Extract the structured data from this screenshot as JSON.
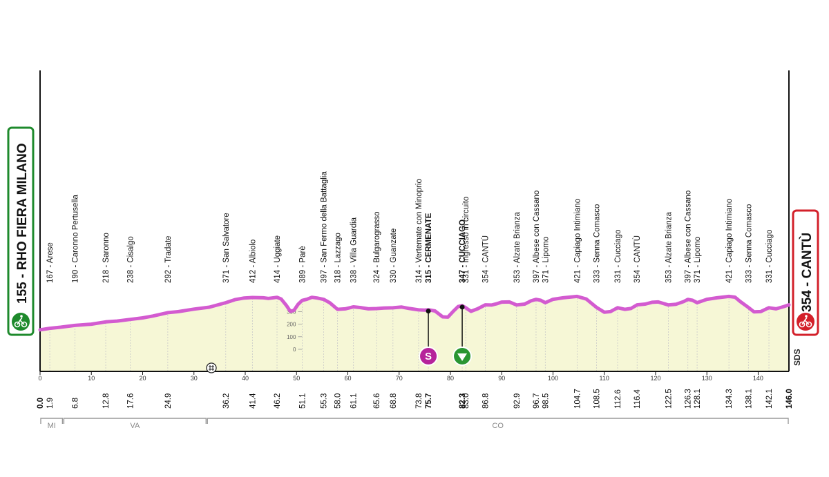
{
  "start_label": "155 - RHO FIERA MILANO",
  "finish_label": "354 - CANTÙ",
  "brand": "SDS",
  "provinces": [
    "MI",
    "VA",
    "CO"
  ],
  "colors": {
    "profile": "#d35bd0",
    "area": "#f6f7d6",
    "start_box": "#1e8a2c",
    "finish_box": "#d3202a",
    "sprint": "#b6239b",
    "kom": "#2a9632"
  },
  "icons": {
    "start": "cyclist-icon",
    "finish": "cyclist-icon",
    "sprint": "sprint-s-icon",
    "kom": "kom-triangle-icon",
    "feed": "feed-zone-icon"
  },
  "chart_data": {
    "type": "area",
    "xlabel": "",
    "ylabel": "",
    "xlim": [
      0,
      146
    ],
    "ylim": [
      0,
      450
    ],
    "x_ticks": [
      0,
      10,
      20,
      30,
      40,
      50,
      60,
      70,
      80,
      90,
      100,
      110,
      120,
      130,
      140
    ],
    "y_ticks": [
      0,
      100,
      200,
      300
    ],
    "feed_zone_km": 34,
    "profile": [
      [
        0,
        155
      ],
      [
        1.9,
        167
      ],
      [
        4,
        176
      ],
      [
        6.8,
        190
      ],
      [
        10,
        200
      ],
      [
        12.8,
        218
      ],
      [
        15,
        225
      ],
      [
        17.6,
        238
      ],
      [
        20,
        250
      ],
      [
        22,
        265
      ],
      [
        24.9,
        292
      ],
      [
        27,
        300
      ],
      [
        30,
        320
      ],
      [
        33,
        335
      ],
      [
        36.2,
        371
      ],
      [
        38,
        395
      ],
      [
        39.8,
        408
      ],
      [
        41.4,
        412
      ],
      [
        43.5,
        410
      ],
      [
        44.5,
        405
      ],
      [
        45.2,
        408
      ],
      [
        46.2,
        414
      ],
      [
        47,
        400
      ],
      [
        48,
        350
      ],
      [
        48.8,
        302
      ],
      [
        49.5,
        310
      ],
      [
        50.3,
        358
      ],
      [
        51.1,
        389
      ],
      [
        52,
        398
      ],
      [
        53,
        414
      ],
      [
        54,
        408
      ],
      [
        55.3,
        397
      ],
      [
        56.5,
        370
      ],
      [
        58,
        318
      ],
      [
        59.5,
        322
      ],
      [
        61.1,
        338
      ],
      [
        62.5,
        332
      ],
      [
        64,
        322
      ],
      [
        65.6,
        324
      ],
      [
        67,
        328
      ],
      [
        68.8,
        330
      ],
      [
        70.5,
        336
      ],
      [
        72,
        325
      ],
      [
        73.8,
        314
      ],
      [
        75,
        312
      ],
      [
        75.7,
        315
      ],
      [
        77,
        305
      ],
      [
        78.5,
        258
      ],
      [
        79.5,
        256
      ],
      [
        80.5,
        300
      ],
      [
        81.5,
        340
      ],
      [
        82.3,
        347
      ],
      [
        83,
        331
      ],
      [
        84,
        302
      ],
      [
        85.3,
        322
      ],
      [
        86.8,
        354
      ],
      [
        88,
        352
      ],
      [
        89,
        362
      ],
      [
        90,
        376
      ],
      [
        91.5,
        377
      ],
      [
        92.9,
        353
      ],
      [
        94.5,
        360
      ],
      [
        95.7,
        385
      ],
      [
        96.7,
        397
      ],
      [
        97.6,
        390
      ],
      [
        98.5,
        371
      ],
      [
        100,
        398
      ],
      [
        102,
        410
      ],
      [
        104,
        418
      ],
      [
        104.7,
        421
      ],
      [
        106.5,
        400
      ],
      [
        108.5,
        333
      ],
      [
        110,
        295
      ],
      [
        111.2,
        300
      ],
      [
        112.6,
        331
      ],
      [
        114,
        318
      ],
      [
        115.2,
        325
      ],
      [
        116.4,
        354
      ],
      [
        118,
        360
      ],
      [
        119.3,
        374
      ],
      [
        120.5,
        377
      ],
      [
        122.5,
        353
      ],
      [
        124,
        359
      ],
      [
        125.5,
        380
      ],
      [
        126.3,
        397
      ],
      [
        127.2,
        390
      ],
      [
        128.1,
        371
      ],
      [
        130,
        398
      ],
      [
        132,
        410
      ],
      [
        134.3,
        421
      ],
      [
        135.5,
        415
      ],
      [
        136.5,
        380
      ],
      [
        138.1,
        333
      ],
      [
        139.2,
        298
      ],
      [
        140.5,
        300
      ],
      [
        142.1,
        331
      ],
      [
        143.5,
        322
      ],
      [
        145,
        340
      ],
      [
        146,
        354
      ]
    ],
    "locations": [
      {
        "km_label": "1.9",
        "name": "167 - Arese"
      },
      {
        "km_label": "6.8",
        "name": "190 - Caronno Pertusella"
      },
      {
        "km_label": "12.8",
        "name": "218 - Saronno"
      },
      {
        "km_label": "17.6",
        "name": "238 - Cisalgo"
      },
      {
        "km_label": "24.9",
        "name": "292 - Tradate"
      },
      {
        "km_label": "36.2",
        "name": "371 - San Salvatore"
      },
      {
        "km_label": "41.4",
        "name": "412 - Albiolo"
      },
      {
        "km_label": "46.2",
        "name": "414 - Uggiate"
      },
      {
        "km_label": "51.1",
        "name": "389 - Parè"
      },
      {
        "km_label": "55.3",
        "name": "397 - San Fermo della Battaglia"
      },
      {
        "km_label": "58.0",
        "name": "318 - Lazzago"
      },
      {
        "km_label": "61.1",
        "name": "338 - Villa Guardia"
      },
      {
        "km_label": "65.6",
        "name": "324 - Bulgarograsso"
      },
      {
        "km_label": "68.8",
        "name": "330 - Guanzate"
      },
      {
        "km_label": "73.8",
        "name": "314 - Vertemate con Minoprio"
      },
      {
        "km_label": "75.7",
        "name": "315 - CERMENATE",
        "bold": true
      },
      {
        "km_label": "82.3",
        "name": "347 - CUCCIAGO",
        "bold": true
      },
      {
        "km_label": "83.0",
        "name": "331 - Ingresso in circuito"
      },
      {
        "km_label": "86.8",
        "name": "354 - CANTÙ"
      },
      {
        "km_label": "92.9",
        "name": "353 - Alzate Brianza"
      },
      {
        "km_label": "96.7",
        "name": "397 - Albese con Cassano"
      },
      {
        "km_label": "98.5",
        "name": "371 - Lipomo"
      },
      {
        "km_label": "104.7",
        "name": "421 - Capiago Intimiano"
      },
      {
        "km_label": "108.5",
        "name": "333 - Senna Comasco"
      },
      {
        "km_label": "112.6",
        "name": "331 - Cucciago"
      },
      {
        "km_label": "116.4",
        "name": "354 - CANTÙ"
      },
      {
        "km_label": "122.5",
        "name": "353 - Alzate Brianza"
      },
      {
        "km_label": "126.3",
        "name": "397 - Albese con Cassano"
      },
      {
        "km_label": "128.1",
        "name": "371 - Lipomo"
      },
      {
        "km_label": "134.3",
        "name": "421 - Capiago Intimiano"
      },
      {
        "km_label": "138.1",
        "name": "333 - Senna Comasco"
      },
      {
        "km_label": "142.1",
        "name": "331 - Cucciago"
      }
    ],
    "start_km_label": "0.0",
    "finish_km_label": "146.0",
    "sprint": {
      "km": 75.7
    },
    "kom": {
      "km": 82.3
    },
    "province_spans": [
      {
        "name": "MI",
        "from": 0,
        "to": 4.5
      },
      {
        "name": "VA",
        "from": 4.5,
        "to": 32.5
      },
      {
        "name": "CO",
        "from": 32.5,
        "to": 146
      }
    ]
  }
}
